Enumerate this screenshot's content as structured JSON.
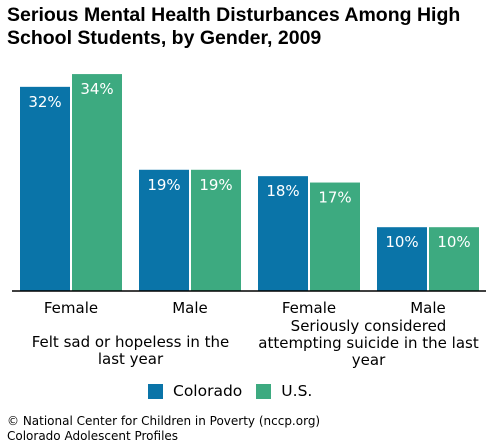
{
  "chart_data": {
    "type": "bar",
    "title": "Serious Mental Health Disturbances Among High School Students, by Gender, 2009",
    "categories": [
      "Female",
      "Male",
      "Female",
      "Male"
    ],
    "groups": [
      {
        "label": "Felt sad or hopeless in the last year",
        "lines": [
          "Felt sad or hopeless in the",
          "last year"
        ],
        "span": [
          0,
          1
        ]
      },
      {
        "label": "Seriously considered attempting suicide in the last year",
        "lines": [
          "Seriously considered",
          "attempting suicide in the last",
          "year"
        ],
        "span": [
          2,
          3
        ]
      }
    ],
    "series": [
      {
        "name": "Colorado",
        "color": "#0a74a8",
        "values": [
          32,
          19,
          18,
          10
        ],
        "labels": [
          "32%",
          "19%",
          "18%",
          "10%"
        ]
      },
      {
        "name": "U.S.",
        "color": "#3daa80",
        "values": [
          34,
          19,
          17,
          10
        ],
        "labels": [
          "34%",
          "19%",
          "17%",
          "10%"
        ]
      }
    ],
    "ylim": [
      0,
      35
    ],
    "grid": false,
    "legend_position": "bottom"
  },
  "footer": {
    "line1": "© National Center for Children in Poverty (nccp.org)",
    "line2": "Colorado Adolescent Profiles"
  }
}
